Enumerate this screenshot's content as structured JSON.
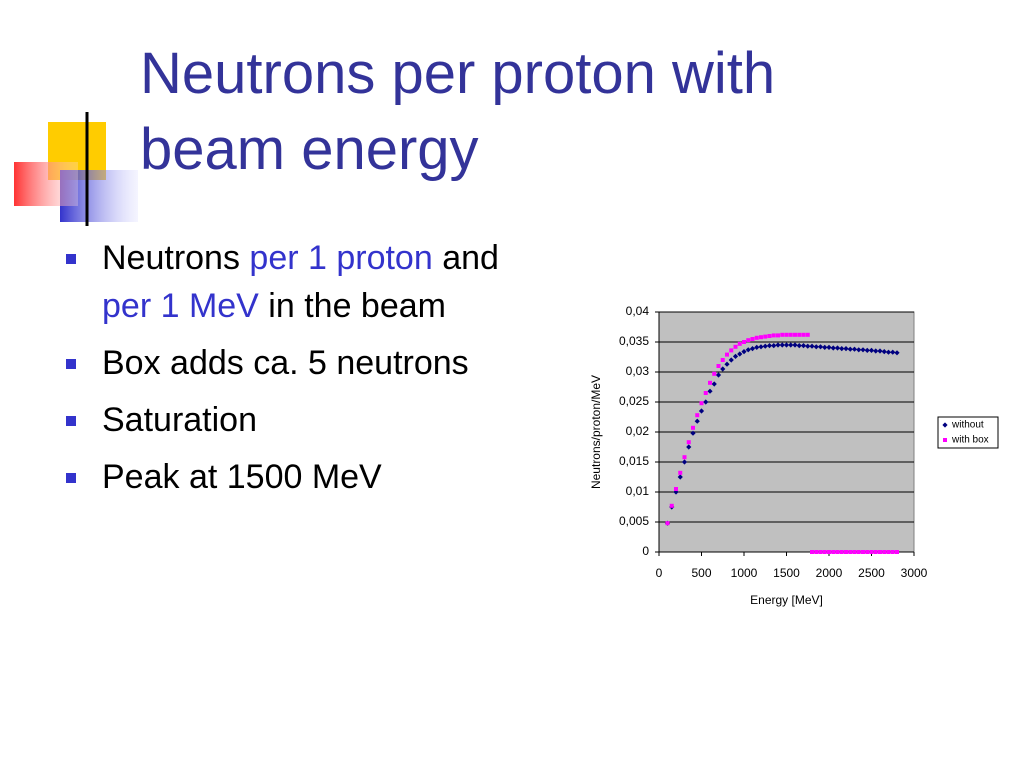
{
  "title": "Neutrons per proton with beam energy",
  "bullets": [
    [
      {
        "text": "Neutrons ",
        "color": "#000000"
      },
      {
        "text": "per 1 proton",
        "color": "#3333cc"
      },
      {
        "text": " and ",
        "color": "#000000"
      },
      {
        "text": "per 1 MeV",
        "color": "#3333cc"
      },
      {
        "text": " in the beam",
        "color": "#000000"
      }
    ],
    [
      {
        "text": "Box adds ca. 5 neutrons",
        "color": "#000000"
      }
    ],
    [
      {
        "text": "Saturation",
        "color": "#000000"
      }
    ],
    [
      {
        "text": "Peak at 1500 MeV",
        "color": "#000000"
      }
    ]
  ],
  "chart_data": {
    "type": "scatter",
    "xlabel": "Energy [MeV]",
    "ylabel": "Neutrons/proton/MeV",
    "xlim": [
      0,
      3000
    ],
    "xticks": [
      0,
      500,
      1000,
      1500,
      2000,
      2500,
      3000
    ],
    "ylim": [
      0,
      0.04
    ],
    "yticks": [
      0,
      {
        "value": 0.005,
        "label": "0,005"
      },
      {
        "value": 0.01,
        "label": "0,01"
      },
      {
        "value": 0.015,
        "label": "0,015"
      },
      {
        "value": 0.02,
        "label": "0,02"
      },
      {
        "value": 0.025,
        "label": "0,025"
      },
      {
        "value": 0.03,
        "label": "0,03"
      },
      {
        "value": 0.035,
        "label": "0,035"
      },
      {
        "value": 0.04,
        "label": "0,04"
      }
    ],
    "grid": true,
    "legend": "right",
    "plot_background": "#c0c0c0",
    "x": [
      100,
      150,
      200,
      250,
      300,
      350,
      400,
      450,
      500,
      550,
      600,
      650,
      700,
      750,
      800,
      850,
      900,
      950,
      1000,
      1050,
      1100,
      1150,
      1200,
      1250,
      1300,
      1350,
      1400,
      1450,
      1500,
      1550,
      1600,
      1650,
      1700,
      1750,
      1800,
      1850,
      1900,
      1950,
      2000,
      2050,
      2100,
      2150,
      2200,
      2250,
      2300,
      2350,
      2400,
      2450,
      2500,
      2550,
      2600,
      2650,
      2700,
      2750,
      2800
    ],
    "series": [
      {
        "name": "without",
        "color": "#000080",
        "marker": "diamond",
        "values": [
          0.0048,
          0.0075,
          0.01,
          0.0125,
          0.015,
          0.0175,
          0.0198,
          0.0218,
          0.0235,
          0.025,
          0.0268,
          0.028,
          0.0295,
          0.0305,
          0.0313,
          0.032,
          0.0326,
          0.033,
          0.0334,
          0.0337,
          0.0339,
          0.0341,
          0.0342,
          0.0343,
          0.0344,
          0.0344,
          0.0345,
          0.0345,
          0.0345,
          0.0345,
          0.0345,
          0.0344,
          0.0344,
          0.0343,
          0.0343,
          0.0342,
          0.0342,
          0.0341,
          0.0341,
          0.034,
          0.034,
          0.0339,
          0.0339,
          0.0338,
          0.0338,
          0.0337,
          0.0337,
          0.0336,
          0.0336,
          0.0335,
          0.0335,
          0.0334,
          0.0333,
          0.0333,
          0.0332
        ]
      },
      {
        "name": "with box",
        "color": "#ff00ff",
        "marker": "square",
        "values": [
          0.0048,
          0.0077,
          0.0105,
          0.0132,
          0.0158,
          0.0183,
          0.0207,
          0.0228,
          0.0248,
          0.0265,
          0.0282,
          0.0297,
          0.031,
          0.032,
          0.0329,
          0.0336,
          0.0342,
          0.0347,
          0.035,
          0.0353,
          0.0355,
          0.0357,
          0.0358,
          0.0359,
          0.036,
          0.0361,
          0.0361,
          0.0362,
          0.0362,
          0.0362,
          0.0362,
          0.0362,
          0.0362,
          0.0362,
          0,
          0,
          0,
          0,
          0,
          0,
          0,
          0,
          0,
          0,
          0,
          0,
          0,
          0,
          0,
          0,
          0,
          0,
          0,
          0,
          0
        ]
      }
    ]
  }
}
